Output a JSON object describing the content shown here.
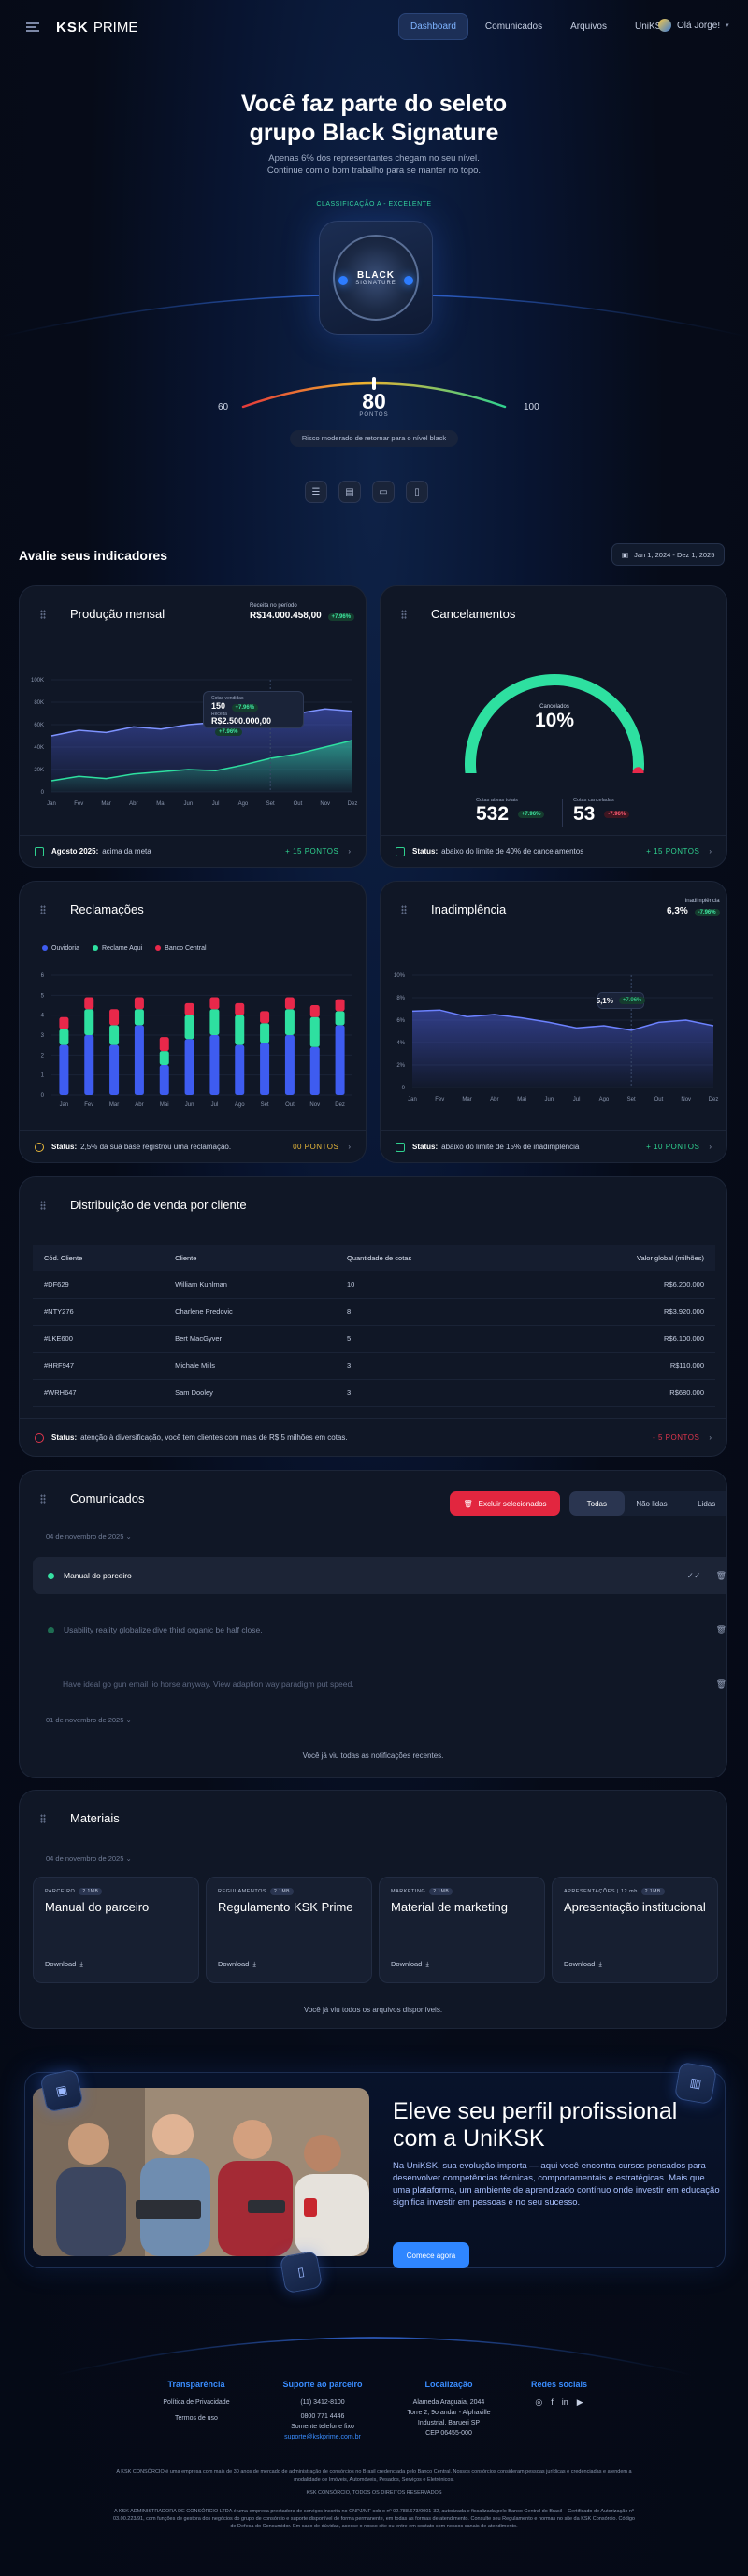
{
  "header": {
    "logo_bold": "KSK",
    "logo_light": "PRIME",
    "nav": [
      "Dashboard",
      "Comunicados",
      "Arquivos",
      "UniKSK"
    ],
    "active_nav": 0,
    "user_greeting": "Olá Jorge!"
  },
  "hero": {
    "title_line1": "Você faz parte do seleto",
    "title_line2": "grupo Black Signature",
    "subtitle_line1": "Apenas 6% dos representantes chegam no seu nível.",
    "subtitle_line2": "Continue com o bom trabalho para se manter no topo.",
    "class_label": "CLASSIFICAÇÃO A - EXCELENTE",
    "badge_line1": "BLACK",
    "badge_line2": "SIGNATURE",
    "gauge_min": "60",
    "gauge_max": "100",
    "gauge_value": "80",
    "gauge_value_num": 80,
    "gauge_unit": "PONTOS",
    "gauge_note": "Risco moderado de retornar para o nível black",
    "icons": [
      "list-icon",
      "message-icon",
      "folder-icon",
      "document-icon"
    ]
  },
  "indicators": {
    "title": "Avalie seus indicadores",
    "date_range": "Jan 1, 2024 - Dez 1, 2025"
  },
  "producao": {
    "title": "Produção mensal",
    "period_label": "Receita no período",
    "period_value": "R$14.000.458,00",
    "period_delta": "+7.96%",
    "tooltip_label": "Cotas vendidas",
    "tooltip_count": "150",
    "tooltip_count_delta": "+7.96%",
    "tooltip_revenue_label": "Receita",
    "tooltip_revenue": "R$2.500.000,00",
    "tooltip_revenue_delta": "+7.96%",
    "footer_bold": "Agosto 2025:",
    "footer_text": "acima da meta",
    "footer_right": "+ 15 PONTOS"
  },
  "cancelamentos": {
    "title": "Cancelamentos",
    "center_label": "Cancelados",
    "center_value": "10%",
    "left_label": "Cotas ativas totais",
    "left_value": "532",
    "left_delta": "+7.96%",
    "right_label": "Cotas canceladas",
    "right_value": "53",
    "right_delta": "-7.96%",
    "footer_bold": "Status:",
    "footer_text": "abaixo do limite de 40% de cancelamentos",
    "footer_right": "+ 15 PONTOS"
  },
  "reclamacoes": {
    "title": "Reclamações",
    "footer_bold": "Status:",
    "footer_text": "2,5% da sua base registrou uma reclamação.",
    "footer_right": "00 PONTOS"
  },
  "inadimplencia": {
    "title": "Inadimplência",
    "top_label": "Inadimplência",
    "top_value": "6,3%",
    "top_delta": "-7.96%",
    "tooltip_value": "5,1%",
    "tooltip_delta": "+7.96%",
    "footer_bold": "Status:",
    "footer_text": "abaixo do limite de 15% de inadimplência",
    "footer_right": "+ 10 PONTOS"
  },
  "distribuicao": {
    "title": "Distribuição de venda por cliente",
    "columns": [
      "Cód. Cliente",
      "Cliente",
      "Quantidade de cotas",
      "Valor global (milhões)"
    ],
    "rows": [
      [
        "#DF629",
        "William Kuhlman",
        "10",
        "R$6.200.000"
      ],
      [
        "#NTY276",
        "Charlene Predovic",
        "8",
        "R$3.920.000"
      ],
      [
        "#LKE600",
        "Bert MacGyver",
        "5",
        "R$6.100.000"
      ],
      [
        "#HRF947",
        "Michale Mills",
        "3",
        "R$110.000"
      ],
      [
        "#WRH647",
        "Sam Dooley",
        "3",
        "R$680.000"
      ]
    ],
    "footer_bold": "Status:",
    "footer_text": "atenção à diversificação, você tem clientes com mais de R$ 5 milhões em cotas.",
    "footer_right": "- 5 PONTOS"
  },
  "comunicados": {
    "title": "Comunicados",
    "delete_label": "Excluir selecionados",
    "filters": [
      "Todas",
      "Não lidas",
      "Lidas"
    ],
    "date1": "04 de novembro de 2025",
    "msg1": "Manual do parceiro",
    "msg2": "Usability reality globalize dive third organic be half close.",
    "msg3": "Have ideal go gun email lio horse anyway. View adaption way paradigm put speed.",
    "date2": "01 de novembro de 2025",
    "all_read": "Você já viu todas as notificações recentes."
  },
  "materiais": {
    "title": "Materiais",
    "date": "04 de novembro de 2025",
    "items": [
      {
        "category": "PARCEIRO",
        "size": "2.1MB",
        "title": "Manual do parceiro"
      },
      {
        "category": "REGULAMENTOS",
        "size": "2.1MB",
        "title": "Regulamento KSK Prime"
      },
      {
        "category": "MARKETING",
        "size": "2.1MB",
        "title": "Material de marketing"
      },
      {
        "category": "APRESENTAÇÕES | 12 mb",
        "size": "2.1MB",
        "title": "Apresentação institucional"
      }
    ],
    "download_label": "Download",
    "all_seen": "Você já viu todos os arquivos disponíveis."
  },
  "unik": {
    "title": "Eleve seu perfil profissional com a UniKSK",
    "text": "Na UniKSK, sua evolução importa — aqui você encontra cursos pensados para desenvolver competências técnicas, comportamentais e estratégicas. Mais que uma plataforma, um ambiente de aprendizado contínuo onde investir em educação significa investir em pessoas e no seu sucesso.",
    "button": "Comece agora"
  },
  "footer": {
    "col1_title": "Transparência",
    "col1_items": [
      "Política de Privacidade",
      "Termos de uso"
    ],
    "col2_title": "Suporte ao parceiro",
    "col2_items": [
      "(11) 3412-8100",
      "0800 771 4446",
      "Somente telefone fixo"
    ],
    "col2_link": "suporte@kskprime.com.br",
    "col3_title": "Localização",
    "col3_items": [
      "Alameda Araguaia, 2044",
      "Torre 2, 9o andar - Alphaville",
      "Industrial, Barueri SP",
      "CEP 06455-000"
    ],
    "col4_title": "Redes sociais",
    "legal1": "A KSK CONSÓRCIO é uma empresa com mais de 30 anos de mercado de administração de consórcios no Brasil credenciada pelo Banco Central. Nossos consórcios consideram pessoas jurídicas e credenciadas e atendem a modalidade de Imóveis, Automóveis, Pesados, Serviços e Eletrônicos.",
    "legal2": "KSK CONSÓRCIO, TODOS OS DIREITOS RESERVADOS",
    "legal3": "A KSK ADMINISTRADORA DE CONSÓRCIO LTDA é uma empresa prestadora de serviços inscrita no CNPJ/MF sob o nº 02.788.673/0001-32, autorizada e fiscalizada pelo Banco Central do Brasil – Certificado de Autorização nº 03.00.223/91, com funções de gestora dos negócios do grupo de consórcio e suporte disponível de forma permanente, em todas as formas de atendimento. Consulte seu Regulamento e normas no site da KSK Consórcio. Código de Defesa do Consumidor. Em caso de dúvidas, acesse o nosso site ou entre em contato com nossos canais de atendimento."
  },
  "chart_data": [
    {
      "type": "area",
      "title": "Produção mensal",
      "categories": [
        "Jan",
        "Fev",
        "Mar",
        "Abr",
        "Mai",
        "Jun",
        "Jul",
        "Ago",
        "Set",
        "Out",
        "Nov",
        "Dez"
      ],
      "y_ticks": [
        "100K",
        "80K",
        "60K",
        "40K",
        "20K",
        "0"
      ],
      "ylim": [
        0,
        100
      ],
      "series": [
        {
          "values": [
            50,
            55,
            53,
            58,
            56,
            60,
            62,
            66,
            65,
            70,
            74,
            72
          ]
        },
        {
          "values": [
            10,
            14,
            12,
            16,
            18,
            20,
            19,
            24,
            30,
            34,
            40,
            46
          ]
        }
      ]
    },
    {
      "type": "pie",
      "title": "Cancelamentos",
      "values": [
        90,
        10
      ]
    },
    {
      "type": "bar",
      "title": "Reclamações",
      "categories": [
        "Jan",
        "Fev",
        "Mar",
        "Abr",
        "Mai",
        "Jun",
        "Jul",
        "Ago",
        "Set",
        "Out",
        "Nov",
        "Dez"
      ],
      "y_ticks": [
        "6",
        "5",
        "4",
        "3",
        "2",
        "1",
        "0"
      ],
      "ylim": [
        0,
        6
      ],
      "stacked": true,
      "series": [
        {
          "name": "Ouvidoria",
          "color": "#3e5cf0",
          "values": [
            2.5,
            3,
            2.5,
            3.5,
            1.5,
            2.8,
            3,
            2.5,
            2.6,
            3,
            2.4,
            3.5
          ]
        },
        {
          "name": "Reclame Aqui",
          "color": "#2ee0a0",
          "values": [
            0.8,
            1.3,
            1,
            0.8,
            0.7,
            1.2,
            1.3,
            1.5,
            1,
            1.3,
            1.5,
            0.7
          ]
        },
        {
          "name": "Banco Central",
          "color": "#e8284a",
          "values": [
            0.6,
            0.6,
            0.8,
            0.6,
            0.7,
            0.6,
            0.6,
            0.6,
            0.6,
            0.6,
            0.6,
            0.6
          ]
        }
      ]
    },
    {
      "type": "area",
      "title": "Inadimplência",
      "categories": [
        "Jan",
        "Fev",
        "Mar",
        "Abr",
        "Mai",
        "Jun",
        "Jul",
        "Ago",
        "Set",
        "Out",
        "Nov",
        "Dez"
      ],
      "y_ticks": [
        "10%",
        "8%",
        "6%",
        "4%",
        "2%",
        "0"
      ],
      "ylim": [
        0,
        10
      ],
      "series": [
        {
          "values": [
            6.8,
            6.9,
            6.3,
            6.5,
            6.2,
            5.8,
            5.3,
            5.5,
            5.1,
            5.8,
            6,
            5.5
          ]
        }
      ]
    }
  ]
}
